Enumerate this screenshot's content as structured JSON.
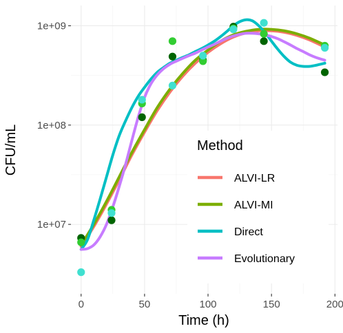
{
  "chart_data": {
    "type": "line",
    "xlabel": "Time (h)",
    "ylabel": "CFU/mL",
    "x_ticks": [
      0,
      50,
      100,
      150,
      200
    ],
    "x_tick_labels": [
      "0",
      "50",
      "100",
      "150",
      "200"
    ],
    "xlim": [
      -8,
      202
    ],
    "y_scale": "log10",
    "y_ticks": [
      10000000,
      100000000,
      1000000000
    ],
    "y_tick_labels": [
      "1e+07",
      "1e+08",
      "1e+09"
    ],
    "ylim": [
      2000000,
      1600000000
    ],
    "grid": true,
    "legend": {
      "title": "Method",
      "placement": "inside-bottom-right",
      "entries": [
        "ALVI-LR",
        "ALVI-MI",
        "Direct",
        "Evolutionary"
      ]
    },
    "point_series": [
      {
        "color": "#006400",
        "points": [
          [
            0,
            7300000
          ],
          [
            24,
            11000000
          ],
          [
            48,
            120000000
          ],
          [
            72,
            490000000
          ],
          [
            96,
            450000000
          ],
          [
            120,
            980000000
          ],
          [
            144,
            700000000
          ],
          [
            192,
            340000000
          ]
        ]
      },
      {
        "color": "#32cd32",
        "points": [
          [
            0,
            6600000
          ],
          [
            24,
            14000000
          ],
          [
            48,
            165000000
          ],
          [
            72,
            700000000
          ],
          [
            96,
            440000000
          ],
          [
            120,
            940000000
          ],
          [
            144,
            830000000
          ],
          [
            192,
            630000000
          ]
        ]
      },
      {
        "color": "#40e0d0",
        "points": [
          [
            0,
            3300000
          ],
          [
            24,
            13000000
          ],
          [
            48,
            180000000
          ],
          [
            72,
            250000000
          ],
          [
            96,
            500000000
          ],
          [
            120,
            920000000
          ],
          [
            144,
            1070000000
          ],
          [
            192,
            600000000
          ]
        ]
      }
    ],
    "series": [
      {
        "name": "ALVI-LR",
        "color": "#f8766d",
        "x": [
          0,
          10,
          20,
          30,
          40,
          50,
          60,
          70,
          80,
          90,
          100,
          110,
          120,
          130,
          140,
          150,
          160,
          170,
          180,
          192
        ],
        "y": [
          6000000,
          9500000,
          16000000,
          28000000,
          50000000,
          85000000,
          140000000,
          215000000,
          310000000,
          420000000,
          540000000,
          660000000,
          770000000,
          850000000,
          890000000,
          890000000,
          860000000,
          800000000,
          720000000,
          610000000
        ]
      },
      {
        "name": "ALVI-MI",
        "color": "#7cae00",
        "x": [
          0,
          10,
          20,
          30,
          40,
          50,
          60,
          70,
          80,
          90,
          100,
          110,
          120,
          130,
          140,
          150,
          160,
          170,
          180,
          192
        ],
        "y": [
          6200000,
          10000000,
          17000000,
          30000000,
          53000000,
          90000000,
          150000000,
          230000000,
          330000000,
          450000000,
          570000000,
          700000000,
          810000000,
          880000000,
          920000000,
          920000000,
          890000000,
          830000000,
          750000000,
          640000000
        ]
      },
      {
        "name": "Direct",
        "color": "#00bfc4",
        "x": [
          0,
          5,
          10,
          15,
          20,
          25,
          30,
          35,
          40,
          45,
          50,
          55,
          60,
          65,
          70,
          75,
          80,
          85,
          90,
          95,
          100,
          105,
          110,
          115,
          120,
          125,
          130,
          135,
          140,
          145,
          150,
          155,
          160,
          165,
          170,
          175,
          180,
          185,
          192
        ],
        "y": [
          5600000,
          7000000,
          11000000,
          18000000,
          30000000,
          50000000,
          78000000,
          110000000,
          150000000,
          195000000,
          240000000,
          290000000,
          340000000,
          380000000,
          420000000,
          450000000,
          480000000,
          510000000,
          550000000,
          590000000,
          640000000,
          700000000,
          780000000,
          880000000,
          1000000000,
          1100000000,
          1150000000,
          1120000000,
          1000000000,
          850000000,
          700000000,
          580000000,
          490000000,
          430000000,
          400000000,
          390000000,
          390000000,
          400000000,
          420000000
        ]
      },
      {
        "name": "Evolutionary",
        "color": "#c77cff",
        "x": [
          0,
          5,
          10,
          15,
          20,
          25,
          30,
          35,
          40,
          45,
          50,
          55,
          60,
          65,
          70,
          75,
          80,
          85,
          90,
          95,
          100,
          105,
          110,
          115,
          120,
          125,
          130,
          135,
          140,
          145,
          150,
          155,
          160,
          165,
          170,
          175,
          180,
          185,
          192
        ],
        "y": [
          5600000,
          5700000,
          6200000,
          7500000,
          10000000,
          15000000,
          24000000,
          40000000,
          70000000,
          120000000,
          190000000,
          260000000,
          320000000,
          370000000,
          410000000,
          440000000,
          470000000,
          500000000,
          530000000,
          570000000,
          610000000,
          650000000,
          700000000,
          750000000,
          790000000,
          820000000,
          840000000,
          840000000,
          830000000,
          810000000,
          780000000,
          740000000,
          690000000,
          640000000,
          590000000,
          550000000,
          510000000,
          480000000,
          450000000
        ]
      }
    ]
  }
}
